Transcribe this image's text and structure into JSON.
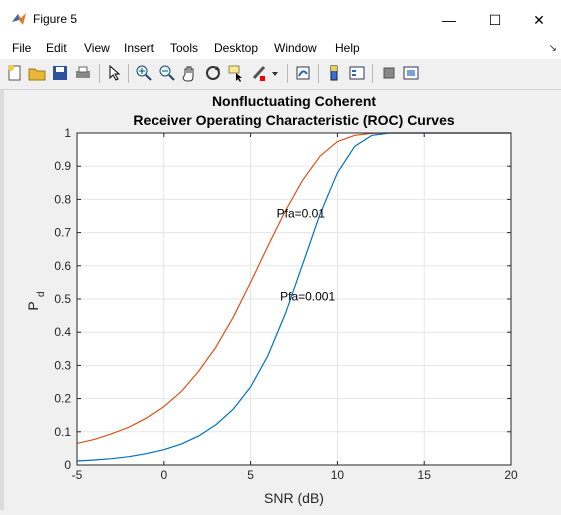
{
  "window": {
    "title": "Figure 5",
    "minimize": "—",
    "maximize": "☐",
    "close": "✕"
  },
  "menu": [
    "File",
    "Edit",
    "View",
    "Insert",
    "Tools",
    "Desktop",
    "Window",
    "Help"
  ],
  "toolbar_icons": [
    "new-figure-icon",
    "open-file-icon",
    "save-icon",
    "print-icon",
    "pointer-icon",
    "zoom-in-icon",
    "zoom-out-icon",
    "pan-icon",
    "rotate-3d-icon",
    "data-cursor-icon",
    "brush-icon",
    "link-plot-icon",
    "colorbar-icon",
    "legend-icon",
    "hide-plot-tools-icon",
    "show-plot-tools-icon"
  ],
  "chart_data": {
    "type": "line",
    "title": [
      "Nonfluctuating Coherent",
      "Receiver Operating Characteristic (ROC) Curves"
    ],
    "xlabel": "SNR (dB)",
    "ylabel": "P",
    "ylabel_sub": "d",
    "xlim": [
      -5,
      20
    ],
    "ylim": [
      0,
      1
    ],
    "xticks": [
      -5,
      0,
      5,
      10,
      15,
      20
    ],
    "yticks": [
      0,
      0.1,
      0.2,
      0.3,
      0.4,
      0.5,
      0.6,
      0.7,
      0.8,
      0.9,
      1
    ],
    "ytick_labels": [
      "0",
      "0.1",
      "0.2",
      "0.3",
      "0.4",
      "0.5",
      "0.6",
      "0.7",
      "0.8",
      "0.9",
      "1"
    ],
    "grid": true,
    "series": [
      {
        "pfa": 0.01,
        "color": "#d95319",
        "x": [
          -5,
          -4,
          -3,
          -2,
          -1,
          0,
          1,
          2,
          3,
          4,
          5,
          6,
          7,
          8,
          9,
          10,
          11,
          12,
          13,
          14,
          15,
          16,
          17,
          18,
          19,
          20
        ],
        "y": [
          0.065,
          0.077,
          0.094,
          0.114,
          0.141,
          0.176,
          0.221,
          0.282,
          0.355,
          0.445,
          0.55,
          0.66,
          0.765,
          0.858,
          0.93,
          0.974,
          0.993,
          0.999,
          1,
          1,
          1,
          1,
          1,
          1,
          1,
          1
        ]
      },
      {
        "pfa": 0.001,
        "color": "#0072bd",
        "x": [
          -5,
          -4,
          -3,
          -2,
          -1,
          0,
          1,
          2,
          3,
          4,
          5,
          6,
          7,
          8,
          9,
          10,
          11,
          12,
          13,
          14,
          15,
          16,
          17,
          18,
          19,
          20
        ],
        "y": [
          0.012,
          0.015,
          0.019,
          0.025,
          0.034,
          0.046,
          0.063,
          0.087,
          0.121,
          0.168,
          0.235,
          0.33,
          0.455,
          0.605,
          0.755,
          0.88,
          0.96,
          0.993,
          1,
          1,
          1,
          1,
          1,
          1,
          1,
          1
        ]
      }
    ],
    "annotations": [
      {
        "text": "Pfa=0.01",
        "x": 6.5,
        "y": 0.745
      },
      {
        "text": "Pfa=0.001",
        "x": 6.7,
        "y": 0.495
      }
    ]
  }
}
